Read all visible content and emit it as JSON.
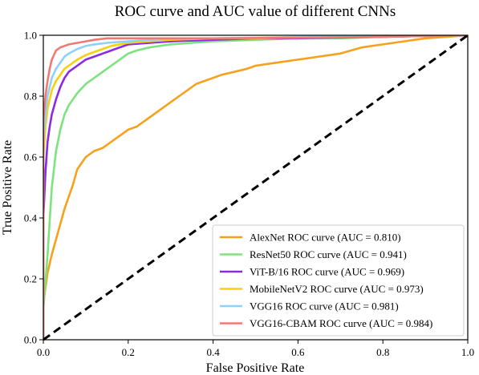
{
  "chart_data": {
    "type": "line",
    "title": "ROC curve and AUC value of different CNNs",
    "xlabel": "False Positive Rate",
    "ylabel": "True Positive Rate",
    "xlim": [
      0.0,
      1.0
    ],
    "ylim": [
      0.0,
      1.0
    ],
    "xticks": [
      "0.0",
      "0.2",
      "0.4",
      "0.6",
      "0.8",
      "1.0"
    ],
    "yticks": [
      "0.0",
      "0.2",
      "0.4",
      "0.6",
      "0.8",
      "1.0"
    ],
    "grid": false,
    "legend_position": "lower-right",
    "series": [
      {
        "name": "AlexNet ROC curve (AUC = 0.810)",
        "color": "#f5a11c",
        "x": [
          0.0,
          0.0,
          0.01,
          0.02,
          0.03,
          0.04,
          0.05,
          0.06,
          0.07,
          0.08,
          0.1,
          0.12,
          0.14,
          0.16,
          0.18,
          0.2,
          0.22,
          0.24,
          0.26,
          0.28,
          0.3,
          0.32,
          0.34,
          0.36,
          0.38,
          0.4,
          0.42,
          0.45,
          0.48,
          0.5,
          0.55,
          0.6,
          0.65,
          0.7,
          0.75,
          0.8,
          0.85,
          0.9,
          0.95,
          1.0
        ],
        "y": [
          0.0,
          0.12,
          0.22,
          0.28,
          0.33,
          0.38,
          0.43,
          0.47,
          0.51,
          0.56,
          0.6,
          0.62,
          0.63,
          0.65,
          0.67,
          0.69,
          0.7,
          0.72,
          0.74,
          0.76,
          0.78,
          0.8,
          0.82,
          0.84,
          0.85,
          0.86,
          0.87,
          0.88,
          0.89,
          0.9,
          0.91,
          0.92,
          0.93,
          0.94,
          0.96,
          0.97,
          0.98,
          0.99,
          0.995,
          1.0
        ]
      },
      {
        "name": "ResNet50 ROC curve (AUC = 0.941)",
        "color": "#7ee27f",
        "x": [
          0.0,
          0.0,
          0.01,
          0.02,
          0.03,
          0.04,
          0.05,
          0.06,
          0.08,
          0.1,
          0.12,
          0.14,
          0.16,
          0.18,
          0.2,
          0.22,
          0.25,
          0.3,
          0.35,
          0.4,
          0.5,
          0.6,
          0.7,
          0.8,
          0.9,
          1.0
        ],
        "y": [
          0.0,
          0.1,
          0.28,
          0.5,
          0.62,
          0.69,
          0.74,
          0.77,
          0.81,
          0.84,
          0.86,
          0.88,
          0.9,
          0.92,
          0.94,
          0.95,
          0.96,
          0.97,
          0.975,
          0.98,
          0.985,
          0.99,
          0.99,
          0.995,
          0.998,
          1.0
        ]
      },
      {
        "name": "ViT-B/16 ROC curve (AUC = 0.969)",
        "color": "#8a2be2",
        "x": [
          0.0,
          0.0,
          0.005,
          0.01,
          0.015,
          0.02,
          0.03,
          0.04,
          0.05,
          0.06,
          0.08,
          0.1,
          0.12,
          0.14,
          0.16,
          0.18,
          0.2,
          0.25,
          0.3,
          0.4,
          0.5,
          0.6,
          0.8,
          1.0
        ],
        "y": [
          0.0,
          0.4,
          0.55,
          0.65,
          0.7,
          0.74,
          0.79,
          0.83,
          0.86,
          0.88,
          0.9,
          0.92,
          0.93,
          0.94,
          0.95,
          0.96,
          0.97,
          0.975,
          0.98,
          0.985,
          0.99,
          0.99,
          0.995,
          1.0
        ]
      },
      {
        "name": "MobileNetV2 ROC curve (AUC = 0.973)",
        "color": "#f8cf0f",
        "x": [
          0.0,
          0.0,
          0.005,
          0.01,
          0.015,
          0.02,
          0.03,
          0.04,
          0.05,
          0.06,
          0.08,
          0.1,
          0.12,
          0.14,
          0.16,
          0.2,
          0.25,
          0.3,
          0.4,
          0.5,
          0.6,
          0.8,
          1.0
        ],
        "y": [
          0.0,
          0.6,
          0.7,
          0.76,
          0.79,
          0.82,
          0.85,
          0.87,
          0.89,
          0.9,
          0.92,
          0.935,
          0.945,
          0.955,
          0.965,
          0.975,
          0.98,
          0.985,
          0.99,
          0.99,
          0.993,
          0.996,
          1.0
        ]
      },
      {
        "name": "VGG16 ROC curve (AUC = 0.981)",
        "color": "#8ed1f8",
        "x": [
          0.0,
          0.0,
          0.005,
          0.01,
          0.015,
          0.02,
          0.03,
          0.04,
          0.05,
          0.06,
          0.08,
          0.1,
          0.12,
          0.15,
          0.2,
          0.25,
          0.3,
          0.4,
          0.5,
          0.6,
          0.8,
          1.0
        ],
        "y": [
          0.0,
          0.65,
          0.74,
          0.8,
          0.83,
          0.86,
          0.89,
          0.91,
          0.93,
          0.94,
          0.955,
          0.965,
          0.97,
          0.975,
          0.98,
          0.985,
          0.988,
          0.99,
          0.992,
          0.995,
          0.998,
          1.0
        ]
      },
      {
        "name": "VGG16-CBAM ROC curve (AUC = 0.984)",
        "color": "#f07a72",
        "x": [
          0.0,
          0.0,
          0.005,
          0.01,
          0.015,
          0.02,
          0.03,
          0.04,
          0.05,
          0.06,
          0.08,
          0.1,
          0.12,
          0.15,
          0.2,
          0.3,
          0.4,
          0.6,
          0.8,
          1.0
        ],
        "y": [
          0.0,
          0.72,
          0.8,
          0.85,
          0.89,
          0.92,
          0.95,
          0.96,
          0.965,
          0.97,
          0.975,
          0.98,
          0.985,
          0.99,
          0.99,
          0.99,
          0.99,
          0.992,
          0.995,
          1.0
        ]
      }
    ],
    "reference_line": {
      "color": "#000000",
      "style": "dashed",
      "x": [
        0.0,
        1.0
      ],
      "y": [
        0.0,
        1.0
      ]
    }
  }
}
